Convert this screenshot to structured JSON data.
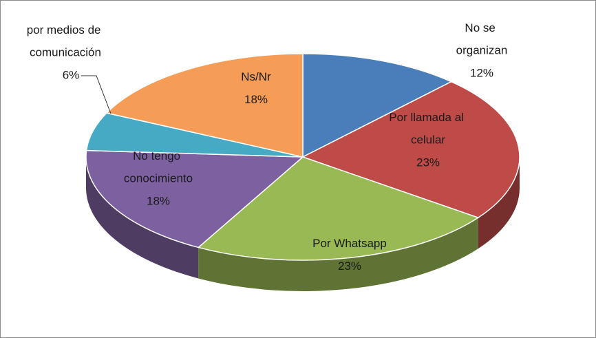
{
  "chart_data": {
    "type": "pie3d",
    "categories": [
      "No se organizan",
      "Por llamada al celular",
      "Por Whatsapp",
      "No tengo conocimiento",
      "por medios de comunicación",
      "Ns/Nr"
    ],
    "values": [
      12,
      23,
      23,
      18,
      6,
      18
    ],
    "value_labels": [
      "12%",
      "23%",
      "23%",
      "18%",
      "6%",
      "18%"
    ],
    "colors": [
      "#4a7ebb",
      "#be4b48",
      "#98b954",
      "#7d60a0",
      "#46aac5",
      "#f59d56"
    ]
  }
}
